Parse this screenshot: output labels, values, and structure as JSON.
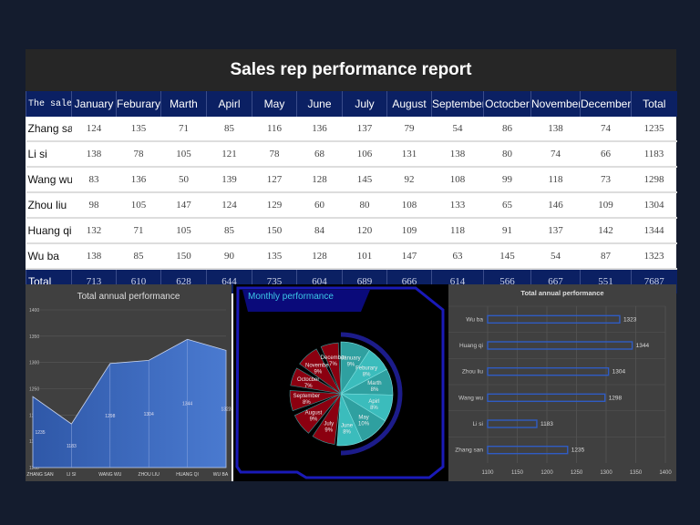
{
  "title": "Sales rep performance report",
  "table": {
    "headers": [
      "The sales",
      "January",
      "Feburary",
      "Marth",
      "Apirl",
      "May",
      "June",
      "July",
      "August",
      "September",
      "Octocber",
      "November",
      "December",
      "Total"
    ],
    "rows": [
      [
        "Zhang san",
        124,
        135,
        71,
        85,
        116,
        136,
        137,
        79,
        54,
        86,
        138,
        74,
        1235
      ],
      [
        "Li si",
        138,
        78,
        105,
        121,
        78,
        68,
        106,
        131,
        138,
        80,
        74,
        66,
        1183
      ],
      [
        "Wang wu",
        83,
        136,
        50,
        139,
        127,
        128,
        145,
        92,
        108,
        99,
        118,
        73,
        1298
      ],
      [
        "Zhou liu",
        98,
        105,
        147,
        124,
        129,
        60,
        80,
        108,
        133,
        65,
        146,
        109,
        1304
      ],
      [
        "Huang qi",
        132,
        71,
        105,
        85,
        150,
        84,
        120,
        109,
        118,
        91,
        137,
        142,
        1344
      ],
      [
        "Wu ba",
        138,
        85,
        150,
        90,
        135,
        128,
        101,
        147,
        63,
        145,
        54,
        87,
        1323
      ]
    ],
    "total": [
      "Total",
      713,
      610,
      628,
      644,
      735,
      604,
      689,
      666,
      614,
      566,
      667,
      551,
      7687
    ]
  },
  "chart_data": [
    {
      "type": "area",
      "title": "Total annual performance",
      "categories": [
        "ZHANG SAN",
        "LI SI",
        "WANG WU",
        "ZHOU LIU",
        "HUANG QI",
        "WU BA"
      ],
      "values": [
        1235,
        1183,
        1298,
        1304,
        1344,
        1323
      ],
      "ylim": [
        1100,
        1400
      ],
      "yticks": [
        1100,
        1150,
        1200,
        1250,
        1300,
        1350,
        1400
      ],
      "grid": true,
      "color": "#4472c4"
    },
    {
      "type": "pie",
      "title": "Monthly performance",
      "categories": [
        "January",
        "Feburary",
        "Marth",
        "Apirl",
        "May",
        "June",
        "July",
        "August",
        "September",
        "Octocber",
        "November",
        "December"
      ],
      "values": [
        713,
        610,
        628,
        644,
        735,
        604,
        689,
        666,
        614,
        566,
        667,
        551
      ],
      "labels": [
        "9%",
        "8%",
        "8%",
        "8%",
        "10%",
        "8%",
        "9%",
        "9%",
        "8%",
        "7%",
        "9%",
        "7%"
      ],
      "colors": {
        "first_half": "#2fa8a8",
        "second_half": "#8b0010"
      }
    },
    {
      "type": "bar",
      "orientation": "horizontal",
      "title": "Total annual performance",
      "categories": [
        "Zhang san",
        "Li si",
        "Wang wu",
        "Zhou liu",
        "Huang qi",
        "Wu ba"
      ],
      "values": [
        1235,
        1183,
        1298,
        1304,
        1344,
        1323
      ],
      "xlim": [
        1100,
        1400
      ],
      "xticks": [
        1100,
        1150,
        1200,
        1250,
        1300,
        1350,
        1400
      ],
      "grid": true,
      "color": "#2f5cc4"
    }
  ]
}
